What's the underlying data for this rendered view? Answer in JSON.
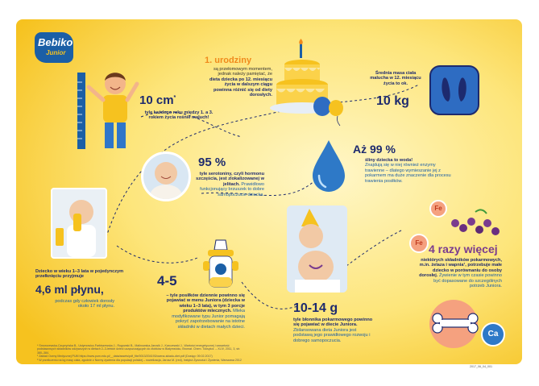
{
  "brand": {
    "name_main": "Bebiko",
    "name_sub": "Junior"
  },
  "colors": {
    "navy": "#1d2a6e",
    "orange": "#f08a1c",
    "yellow": "#f6c21f",
    "blue": "#1b5fa6"
  },
  "growth": {
    "headline": "10 cm",
    "sup": "*",
    "text": "tyle każdego roku między 1. a 3. rokiem życia rośnie maluch!"
  },
  "birthday": {
    "title": "1. urodziny",
    "text_pre": "są przełomowym momentem, jednak należy pamiętać, że",
    "text_bold": "dieta dziecka po 12. miesiącu życia w dalszym ciągu powinna różnić się od diety dorosłych."
  },
  "weight": {
    "label": "Średnia masa ciała malucha w 12. miesiącu życia to ok.",
    "value": "10 kg"
  },
  "serotonin": {
    "value": "95 %",
    "text_bold": "tyle serotoniny, czyli hormonu szczęścia, jest zlokalizowanej w jelitach.",
    "text": "Prawidłowo funkcjonujący brzuszek to dobre samopoczucie dziecka."
  },
  "water": {
    "value": "Aż 99 %",
    "text_bold": "śliny dziecka to woda!",
    "text": "Znajdują się w niej również enzymy trawienne – dlatego wymieszanie jej z pokarmem ma duże znaczenie dla procesu trawienia posiłków."
  },
  "fluid": {
    "intro": "Dziecko w wieku 1–3 lata w pojedynczym przełknięciu przyjmuje",
    "value": "4,6 ml płynu,",
    "text": "podczas gdy człowiek dorosły około 17 ml płynu."
  },
  "meals": {
    "value": "4-5",
    "text_bold": "– tyle posiłków dziennie powinno się pojawiać w menu Juniora (dziecka w wieku 1–3 lata), w tym 3 porcje produktów mlecznych.",
    "text": "Mleka modyfikowane typu Junior pomagają pokryć zapotrzebowanie na istotne składniki w dietach małych dzieci."
  },
  "fiber": {
    "value": "10-14 g",
    "text_bold": "tyle błonnika pokarmowego powinno się pojawiać w diecie Juniora.",
    "text": "Zbilansowana dieta Juniora jest podstawą jego prawidłowego rozwoju i dobrego samopoczucia."
  },
  "nutrients": {
    "value": "4 razy więcej",
    "text_bold": "niektórych składników pokarmowych, m.in. żelaza i wapnia¹, potrzebuje małe dziecko w porównaniu do osoby dorosłej.",
    "text": "Żywienie w tym czasie powinno być dopasowane do szczególnych potrzeb Juniora.",
    "fe_symbol": "Fe",
    "ca_symbol": "Ca"
  },
  "footnotes": [
    "* Smorczewska-Czupryńska B., Ustymowicz-Farbiszewska J., Rogowski B., Malinowska-Jarosik J., Karczewski J., Wartości energetycznej i zawartość",
    "podstawowych składników odżywczych w dietach 2–3-letnich dzieci uczęszczających do żłobków w Białymstoku, Bromat. Chem. Toksykol. – XLIV, 2011, 3, str.",
    "380–384.",
    "¹ Zakład Oceny Medycznej PUM https://www.pum.edu.pl/__data/assets/pdf_file/0013/204193/ocena-skladu-diet.pdf (Dostęp: 09.02.2017)",
    "² W przeliczeniu na kg masy ciała, zgodnie z Normy żywienia dla populacji polskiej – nowelizacja, Jarosz M. (red), Instytut Żywności i Żywienia, Warszawa 2012"
  ],
  "doc_code": "2017_06_04_001"
}
